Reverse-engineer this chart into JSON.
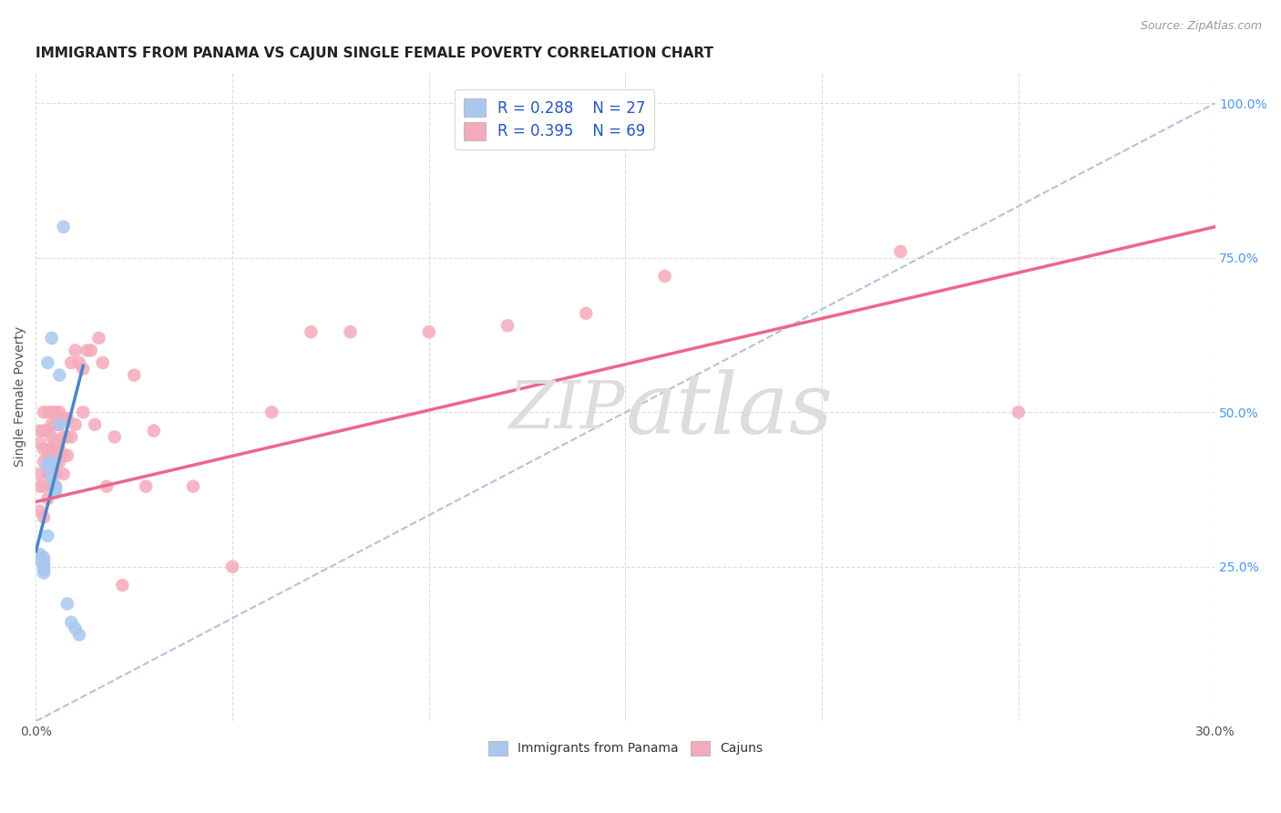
{
  "title": "IMMIGRANTS FROM PANAMA VS CAJUN SINGLE FEMALE POVERTY CORRELATION CHART",
  "source": "Source: ZipAtlas.com",
  "ylabel": "Single Female Poverty",
  "xlim": [
    0.0,
    0.3
  ],
  "ylim": [
    0.0,
    1.05
  ],
  "xticks": [
    0.0,
    0.05,
    0.1,
    0.15,
    0.2,
    0.25,
    0.3
  ],
  "yticks": [
    0.25,
    0.5,
    0.75,
    1.0
  ],
  "ytick_right_labels": [
    "25.0%",
    "50.0%",
    "75.0%",
    "100.0%"
  ],
  "xtick_labels": [
    "0.0%",
    "",
    "",
    "",
    "",
    "",
    "30.0%"
  ],
  "blue_R": 0.288,
  "blue_N": 27,
  "pink_R": 0.395,
  "pink_N": 69,
  "blue_color": "#A8C8F0",
  "pink_color": "#F5AABB",
  "blue_line_color": "#4488CC",
  "pink_line_color": "#EE6688",
  "right_tick_color": "#4499FF",
  "legend_text_color": "#2255CC",
  "watermark_color": "#DDDDDD",
  "background_color": "#FFFFFF",
  "grid_color": "#DDDDDD",
  "dashed_line_color": "#AABBDD",
  "blue_x": [
    0.001,
    0.001,
    0.001,
    0.002,
    0.002,
    0.002,
    0.002,
    0.002,
    0.002,
    0.003,
    0.003,
    0.003,
    0.003,
    0.004,
    0.004,
    0.004,
    0.004,
    0.005,
    0.005,
    0.005,
    0.006,
    0.006,
    0.007,
    0.008,
    0.009,
    0.01,
    0.011
  ],
  "blue_y": [
    0.27,
    0.265,
    0.26,
    0.265,
    0.26,
    0.255,
    0.25,
    0.245,
    0.24,
    0.415,
    0.415,
    0.3,
    0.58,
    0.42,
    0.41,
    0.395,
    0.62,
    0.38,
    0.375,
    0.37,
    0.56,
    0.48,
    0.8,
    0.19,
    0.16,
    0.15,
    0.14
  ],
  "pink_x": [
    0.001,
    0.001,
    0.001,
    0.001,
    0.001,
    0.002,
    0.002,
    0.002,
    0.002,
    0.002,
    0.002,
    0.003,
    0.003,
    0.003,
    0.003,
    0.003,
    0.003,
    0.004,
    0.004,
    0.004,
    0.004,
    0.004,
    0.004,
    0.005,
    0.005,
    0.005,
    0.005,
    0.005,
    0.005,
    0.006,
    0.006,
    0.006,
    0.006,
    0.007,
    0.007,
    0.007,
    0.007,
    0.008,
    0.008,
    0.008,
    0.009,
    0.009,
    0.01,
    0.01,
    0.011,
    0.012,
    0.012,
    0.013,
    0.014,
    0.015,
    0.016,
    0.017,
    0.018,
    0.02,
    0.022,
    0.025,
    0.028,
    0.03,
    0.04,
    0.05,
    0.06,
    0.07,
    0.08,
    0.1,
    0.12,
    0.14,
    0.16,
    0.22,
    0.25
  ],
  "pink_y": [
    0.47,
    0.45,
    0.4,
    0.38,
    0.34,
    0.5,
    0.47,
    0.44,
    0.42,
    0.38,
    0.33,
    0.5,
    0.47,
    0.44,
    0.43,
    0.4,
    0.36,
    0.5,
    0.48,
    0.46,
    0.44,
    0.41,
    0.38,
    0.5,
    0.48,
    0.45,
    0.43,
    0.4,
    0.38,
    0.5,
    0.48,
    0.44,
    0.42,
    0.49,
    0.46,
    0.43,
    0.4,
    0.49,
    0.46,
    0.43,
    0.58,
    0.46,
    0.6,
    0.48,
    0.58,
    0.57,
    0.5,
    0.6,
    0.6,
    0.48,
    0.62,
    0.58,
    0.38,
    0.46,
    0.22,
    0.56,
    0.38,
    0.47,
    0.38,
    0.25,
    0.5,
    0.63,
    0.63,
    0.63,
    0.64,
    0.66,
    0.72,
    0.76,
    0.5
  ],
  "blue_line_x": [
    0.0,
    0.012
  ],
  "blue_line_y": [
    0.275,
    0.575
  ],
  "pink_line_x": [
    0.0,
    0.3
  ],
  "pink_line_y": [
    0.355,
    0.8
  ],
  "diag_line_x": [
    0.0,
    0.3
  ],
  "diag_line_y": [
    0.0,
    1.0
  ],
  "title_fontsize": 11,
  "source_fontsize": 9,
  "axis_label_fontsize": 10,
  "tick_fontsize": 10,
  "legend_fontsize": 12,
  "watermark_fontsize": 52
}
